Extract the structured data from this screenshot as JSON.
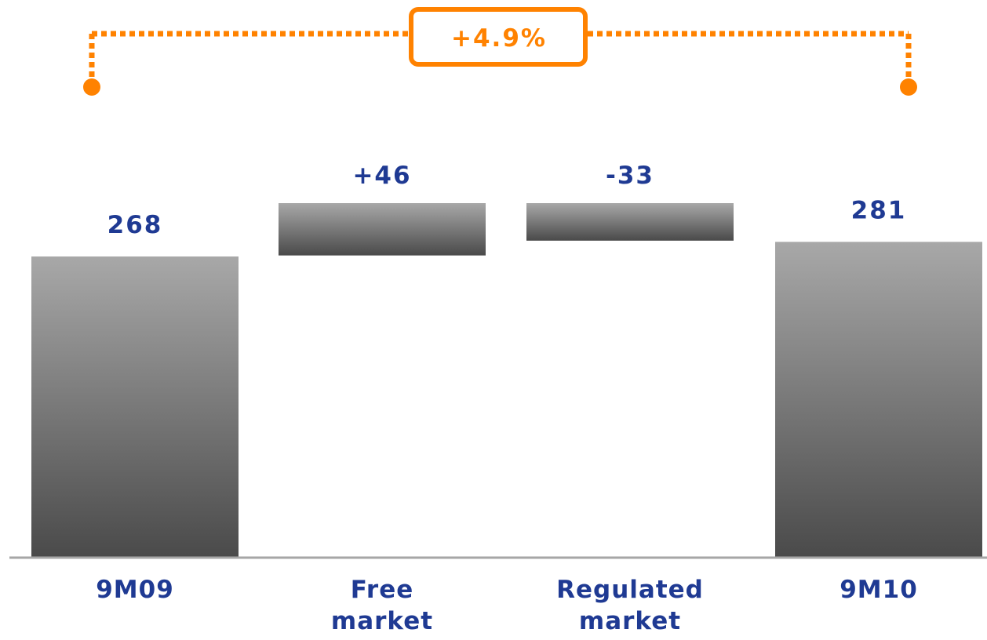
{
  "colors": {
    "label": "#1f3a93",
    "accent": "#ff8200",
    "bar_top": "#a8a8a8",
    "bar_bottom": "#4a4a4a",
    "baseline": "#a6a6a6"
  },
  "chart_data": {
    "type": "bar",
    "subtype": "waterfall",
    "categories": [
      [
        "9M09"
      ],
      [
        "Free",
        "market"
      ],
      [
        "Regulated",
        "market"
      ],
      [
        "9M10"
      ]
    ],
    "values": [
      268,
      46,
      -33,
      281
    ],
    "value_labels": [
      "268",
      "+46",
      "-33",
      "281"
    ],
    "bar_kinds": [
      "total",
      "delta",
      "delta",
      "total"
    ],
    "growth_annotation": "+4.9%",
    "title": "",
    "xlabel": "",
    "ylabel": "",
    "grid": false,
    "legend": "none"
  }
}
